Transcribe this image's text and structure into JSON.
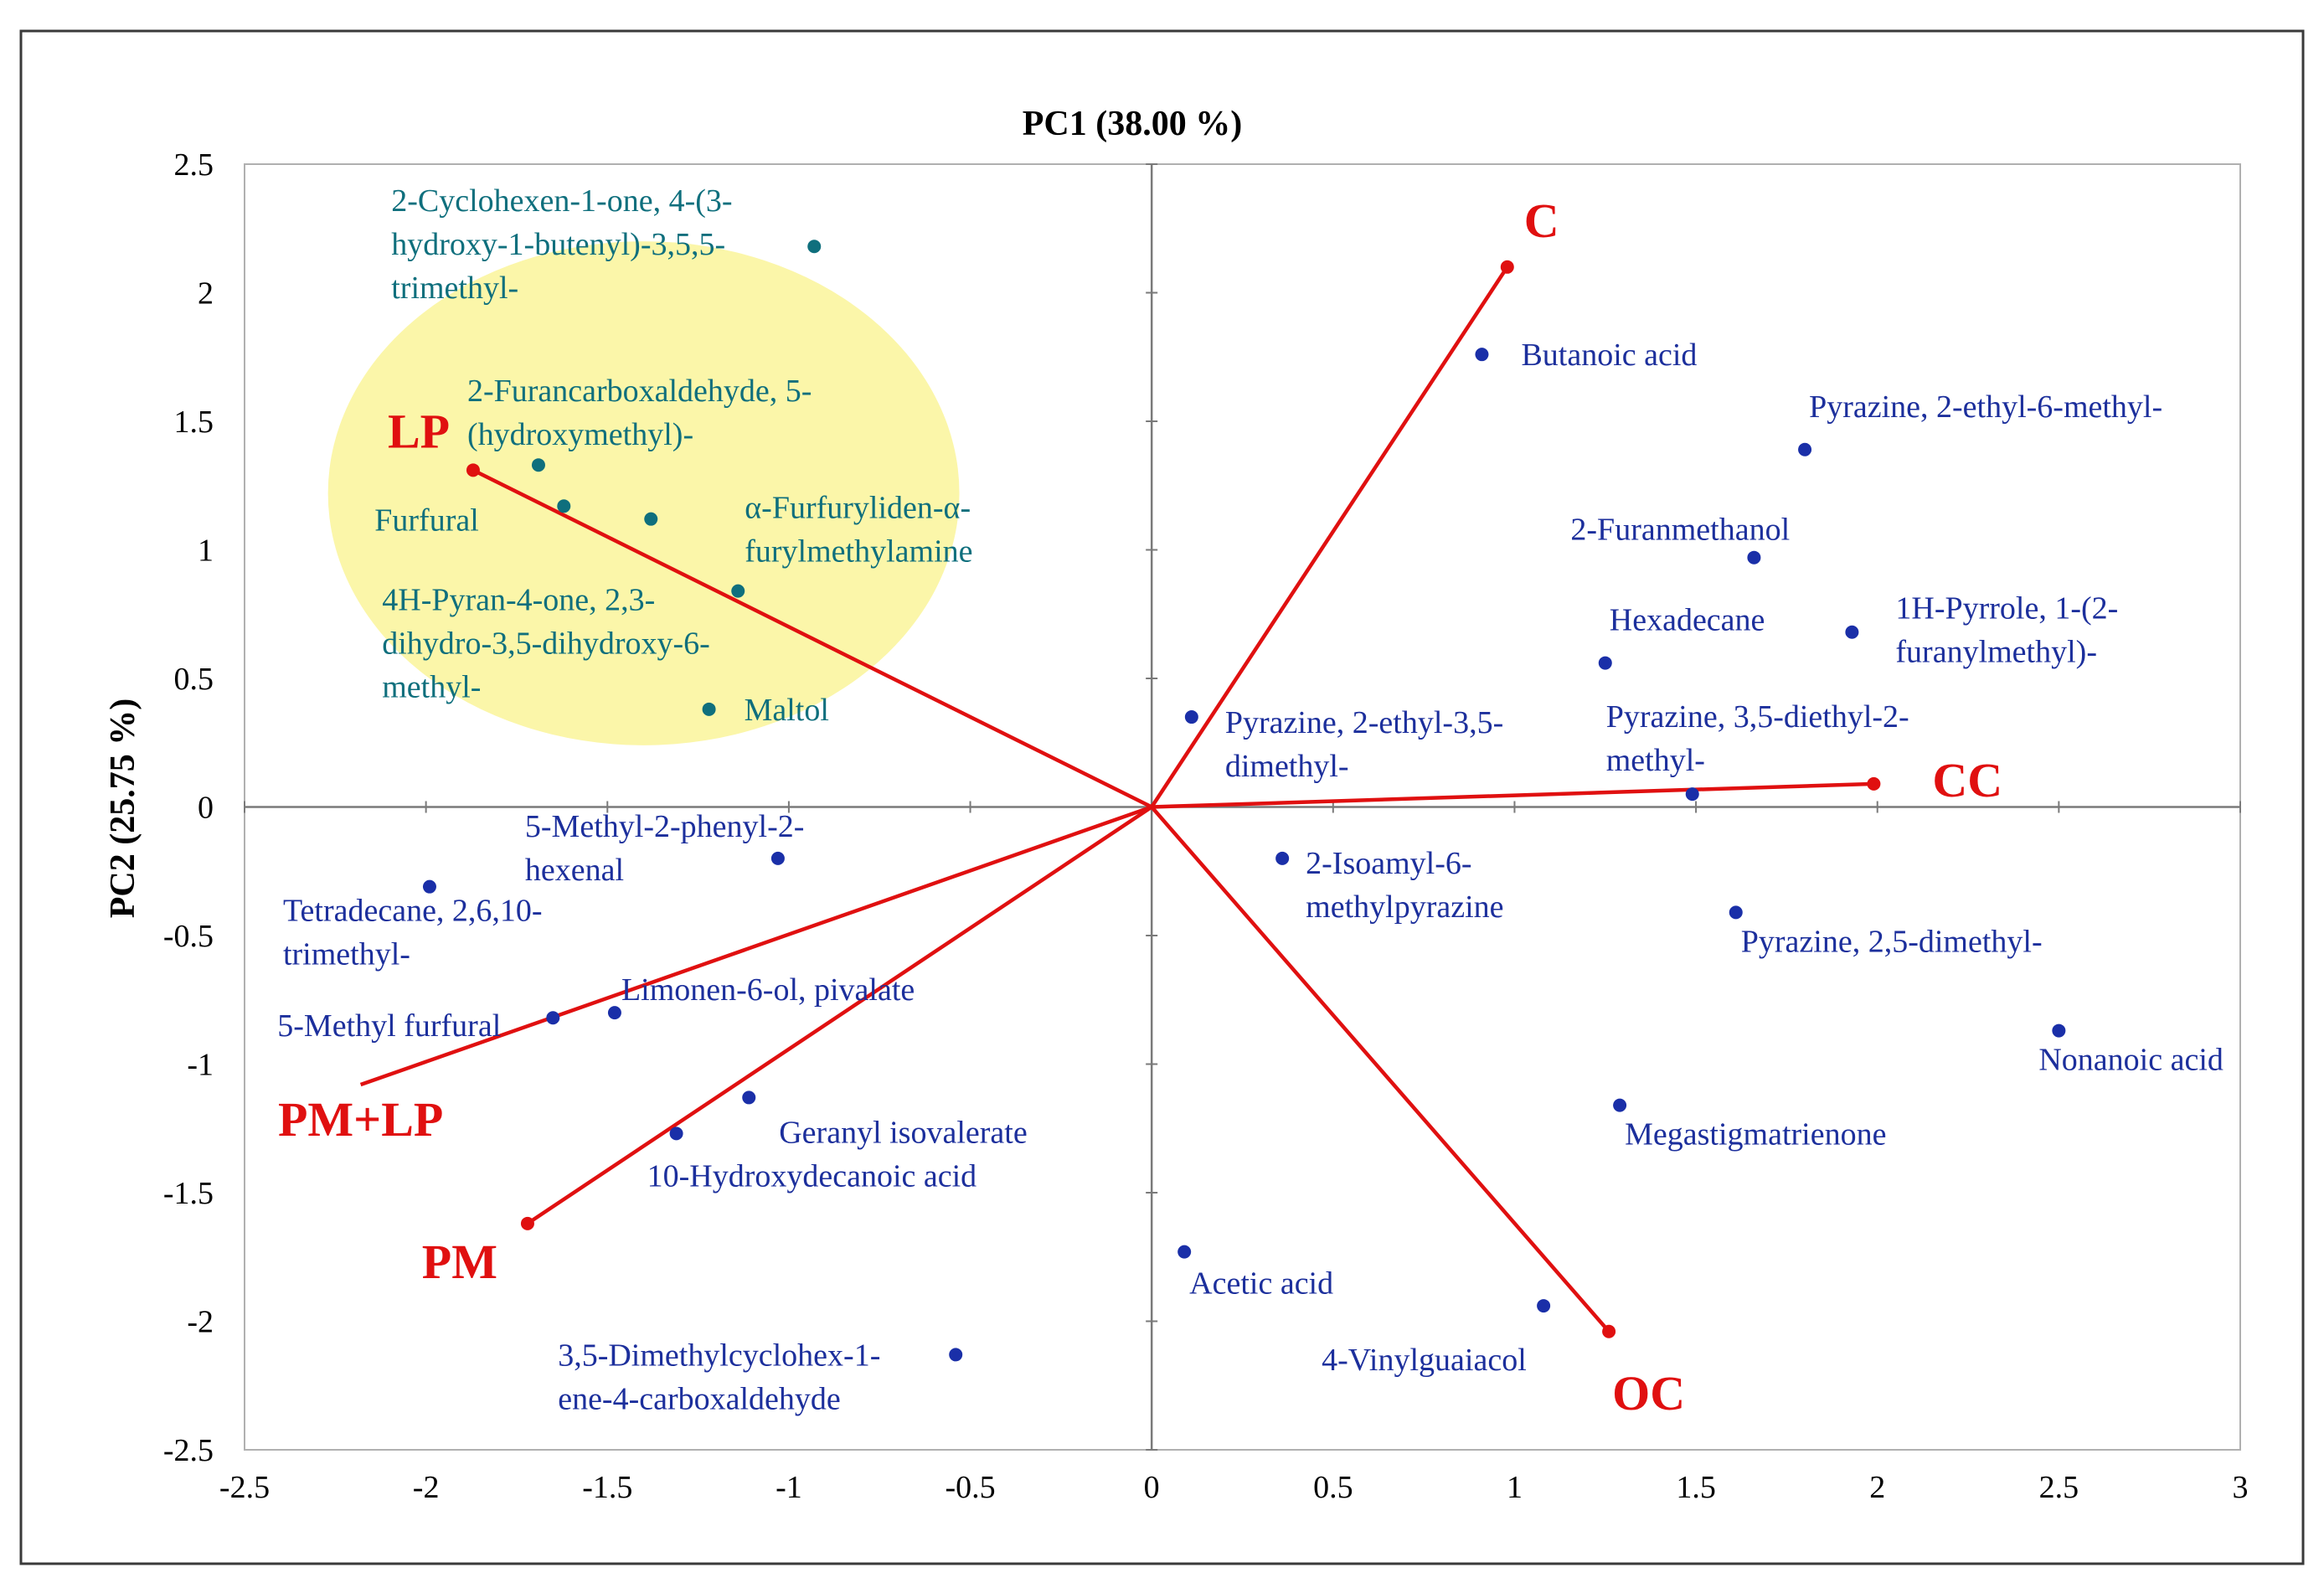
{
  "chart_data": {
    "type": "scatter",
    "subtype": "PCA biplot",
    "xlabel": "PC1 (38.00 %)",
    "ylabel": "PC2 (25.75 %)",
    "xlim": [
      -2.5,
      3
    ],
    "ylim": [
      -2.5,
      2.5
    ],
    "x_ticks": [
      "-2.5",
      "-2",
      "-1.5",
      "-1",
      "-0.5",
      "0",
      "0.5",
      "1",
      "1.5",
      "2",
      "2.5",
      "3"
    ],
    "y_ticks": [
      "2.5",
      "2",
      "1.5",
      "1",
      "0.5",
      "0",
      "-0.5",
      "-1",
      "-1.5",
      "-2",
      "-2.5"
    ],
    "colors": {
      "variable_point": "#1a2fa8",
      "variable_label": "#1c2f9c",
      "highlighted_point": "#0f6f7d",
      "highlighted_label": "#0f6f7d",
      "vector": "#e01010",
      "cluster_fill": "#fbf6a9"
    },
    "highlight_region": {
      "shape": "ellipse",
      "cx": -1.4,
      "cy": 1.22,
      "rx": 0.87,
      "ry": 0.98
    },
    "vectors": [
      {
        "name": "C",
        "x": 0.98,
        "y": 2.1
      },
      {
        "name": "CC",
        "x": 1.99,
        "y": 0.09
      },
      {
        "name": "OC",
        "x": 1.26,
        "y": -2.04
      },
      {
        "name": "PM",
        "x": -1.72,
        "y": -1.62
      },
      {
        "name": "PM+LP",
        "x": -2.18,
        "y": -1.08
      },
      {
        "name": "LP",
        "x": -1.87,
        "y": 1.31
      }
    ],
    "points": [
      {
        "label": "2-Cyclohexen-1-one, 4-(3-\nhydroxy-1-butenyl)-3,5,5-\ntrimethyl-",
        "x": -0.93,
        "y": 2.18,
        "highlighted": true
      },
      {
        "label": "2-Furancarboxaldehyde, 5-\n(hydroxymethyl)-",
        "x": -1.69,
        "y": 1.33,
        "highlighted": true
      },
      {
        "label": "Furfural",
        "x": -1.62,
        "y": 1.17,
        "highlighted": true
      },
      {
        "label": "α-Furfuryliden-α-\nfurylmethylamine",
        "x": -1.38,
        "y": 1.12,
        "highlighted": true
      },
      {
        "label": "4H-Pyran-4-one, 2,3-\ndihydro-3,5-dihydroxy-6-\nmethyl-",
        "x": -1.14,
        "y": 0.84,
        "highlighted": true
      },
      {
        "label": "Maltol",
        "x": -1.22,
        "y": 0.38,
        "highlighted": true
      },
      {
        "label": "Butanoic acid",
        "x": 0.91,
        "y": 1.76,
        "highlighted": false
      },
      {
        "label": "Pyrazine, 2-ethyl-6-methyl-",
        "x": 1.8,
        "y": 1.39,
        "highlighted": false
      },
      {
        "label": "2-Furanmethanol",
        "x": 1.66,
        "y": 0.97,
        "highlighted": false
      },
      {
        "label": "Hexadecane",
        "x": 1.25,
        "y": 0.56,
        "highlighted": false
      },
      {
        "label": "1H-Pyrrole, 1-(2-\nfuranylmethyl)-",
        "x": 1.93,
        "y": 0.68,
        "highlighted": false
      },
      {
        "label": "Pyrazine, 2-ethyl-3,5-\ndimethyl-",
        "x": 0.11,
        "y": 0.35,
        "highlighted": false
      },
      {
        "label": "Pyrazine, 3,5-diethyl-2-\nmethyl-",
        "x": 1.49,
        "y": 0.05,
        "highlighted": false
      },
      {
        "label": "2-Isoamyl-6-\nmethylpyrazine",
        "x": 0.36,
        "y": -0.2,
        "highlighted": false
      },
      {
        "label": "Pyrazine, 2,5-dimethyl-",
        "x": 1.61,
        "y": -0.41,
        "highlighted": false
      },
      {
        "label": "Nonanoic acid",
        "x": 2.5,
        "y": -0.87,
        "highlighted": false
      },
      {
        "label": "Megastigmatrienone",
        "x": 1.29,
        "y": -1.16,
        "highlighted": false
      },
      {
        "label": "Acetic acid",
        "x": 0.09,
        "y": -1.73,
        "highlighted": false
      },
      {
        "label": "4-Vinylguaiacol",
        "x": 1.08,
        "y": -1.94,
        "highlighted": false
      },
      {
        "label": "3,5-Dimethylcyclohex-1-\nene-4-carboxaldehyde",
        "x": -0.54,
        "y": -2.13,
        "highlighted": false
      },
      {
        "label": "5-Methyl-2-phenyl-2-\nhexenal",
        "x": -1.03,
        "y": -0.2,
        "highlighted": false
      },
      {
        "label": "Tetradecane, 2,6,10-\ntrimethyl-",
        "x": -1.99,
        "y": -0.31,
        "highlighted": false
      },
      {
        "label": "Limonen-6-ol, pivalate",
        "x": -1.48,
        "y": -0.8,
        "highlighted": false
      },
      {
        "label": "5-Methyl furfural",
        "x": -1.65,
        "y": -0.82,
        "highlighted": false
      },
      {
        "label": "Geranyl isovalerate",
        "x": -1.11,
        "y": -1.13,
        "highlighted": false
      },
      {
        "label": "10-Hydroxydecanoic acid",
        "x": -1.31,
        "y": -1.27,
        "highlighted": false
      }
    ]
  }
}
